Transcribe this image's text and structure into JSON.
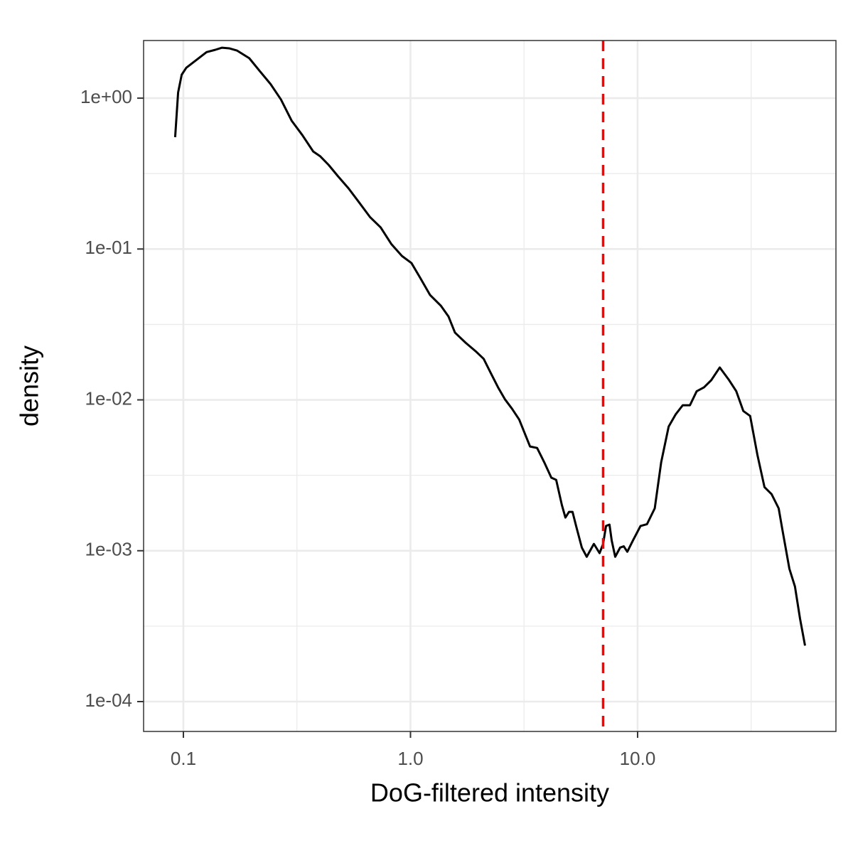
{
  "chart_data": {
    "type": "line",
    "x_label": "DoG-filtered intensity",
    "y_label": "density",
    "xscale": "log",
    "yscale": "log",
    "xlim": [
      0.0668,
      74.7
    ],
    "ylim": [
      6.34e-05,
      2.41
    ],
    "xticks": [
      {
        "value": 0.1,
        "label": "0.1"
      },
      {
        "value": 1,
        "label": "1.0"
      },
      {
        "value": 10,
        "label": "10.0"
      }
    ],
    "yticks": [
      {
        "value": 0.0001,
        "label": "1e-04"
      },
      {
        "value": 0.001,
        "label": "1e-03"
      },
      {
        "value": 0.01,
        "label": "1e-02"
      },
      {
        "value": 0.1,
        "label": "1e-01"
      },
      {
        "value": 1,
        "label": "1e+00"
      }
    ],
    "xminor": [
      0.3162,
      3.162,
      31.62
    ],
    "yminor": [
      0.0003162,
      0.003162,
      0.03162,
      0.3162
    ],
    "grid": true,
    "vline": {
      "value": 7.05,
      "color": "#ff0000",
      "dashed": true
    },
    "series": [
      {
        "color": "#000000",
        "x": [
          0.092,
          0.0948,
          0.0983,
          0.103,
          0.1135,
          0.1265,
          0.138,
          0.148,
          0.159,
          0.172,
          0.195,
          0.217,
          0.242,
          0.269,
          0.3,
          0.334,
          0.373,
          0.401,
          0.436,
          0.48,
          0.534,
          0.595,
          0.663,
          0.739,
          0.823,
          0.917,
          1.01,
          1.1,
          1.22,
          1.36,
          1.47,
          1.57,
          1.75,
          1.95,
          2.1,
          2.26,
          2.43,
          2.61,
          2.8,
          3.01,
          3.36,
          3.61,
          3.88,
          4.17,
          4.38,
          4.64,
          4.81,
          4.99,
          5.17,
          5.36,
          5.68,
          5.97,
          6.42,
          6.8,
          7.05,
          7.26,
          7.52,
          7.69,
          7.97,
          8.38,
          8.69,
          9.01,
          9.54,
          10.3,
          11.0,
          11.9,
          12.7,
          13.7,
          14.7,
          15.8,
          17.0,
          18.2,
          19.6,
          21.1,
          23.0,
          25.3,
          27.2,
          29.2,
          31.3,
          33.7,
          36.2,
          38.9,
          41.8,
          43.4,
          46.6,
          49.3,
          51.9,
          54.6
        ],
        "values": [
          0.551,
          1.09,
          1.43,
          1.59,
          1.78,
          2.02,
          2.09,
          2.16,
          2.14,
          2.07,
          1.84,
          1.51,
          1.24,
          0.979,
          0.707,
          0.569,
          0.443,
          0.411,
          0.361,
          0.303,
          0.252,
          0.203,
          0.163,
          0.139,
          0.108,
          0.0899,
          0.0807,
          0.0649,
          0.0495,
          0.0421,
          0.0357,
          0.0279,
          0.0239,
          0.0208,
          0.0187,
          0.015,
          0.0121,
          0.01005,
          0.00873,
          0.00741,
          0.00491,
          0.0048,
          0.00386,
          0.00305,
          0.00295,
          0.00201,
          0.00166,
          0.00181,
          0.00181,
          0.00146,
          0.00105,
          0.000912,
          0.00111,
          0.000964,
          0.00111,
          0.00146,
          0.00149,
          0.00117,
          0.000912,
          0.00105,
          0.00107,
          0.000985,
          0.00117,
          0.00146,
          0.0015,
          0.00191,
          0.00386,
          0.00665,
          0.008,
          0.00921,
          0.00921,
          0.0114,
          0.0121,
          0.0135,
          0.0164,
          0.0135,
          0.0114,
          0.00844,
          0.00782,
          0.00431,
          0.00264,
          0.00237,
          0.00191,
          0.00138,
          0.000759,
          0.000579,
          0.000355,
          0.000235
        ]
      }
    ]
  }
}
